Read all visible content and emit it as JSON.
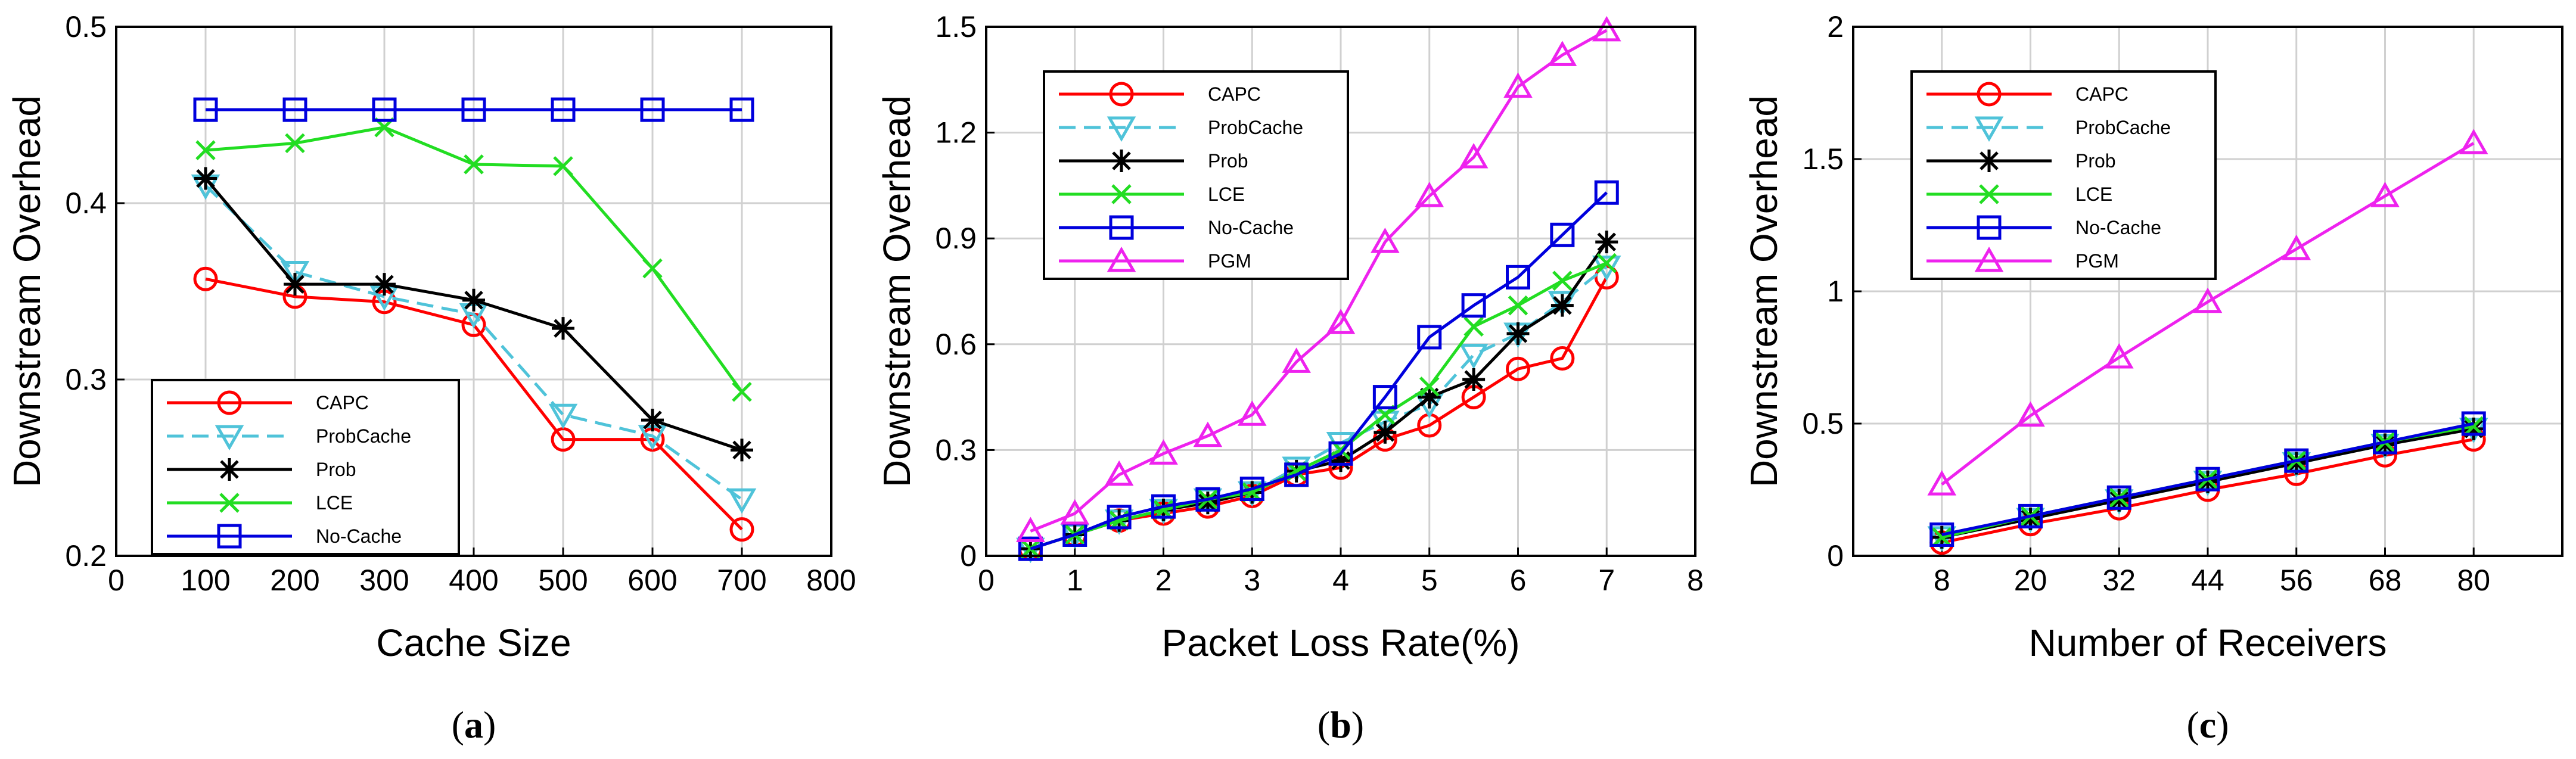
{
  "chart_data": [
    {
      "type": "line",
      "caption": "a",
      "xlabel": "Cache Size",
      "ylabel": "Downstream  Overhead",
      "xlim": [
        0,
        800
      ],
      "ylim": [
        0.2,
        0.5
      ],
      "xticks": [
        "0",
        "100",
        "200",
        "300",
        "400",
        "500",
        "600",
        "700",
        "800"
      ],
      "yticks": [
        "0.2",
        "0.3",
        "0.4",
        "0.5"
      ],
      "grid": true,
      "legend_position": "bottom-left",
      "x": [
        100,
        200,
        300,
        400,
        500,
        600,
        700
      ],
      "series": [
        {
          "name": "CAPC",
          "color": "#ff0000",
          "marker": "circle",
          "dash": "solid",
          "values": [
            0.357,
            0.347,
            0.344,
            0.331,
            0.266,
            0.266,
            0.215
          ]
        },
        {
          "name": "ProbCache",
          "color": "#4fc3d9",
          "marker": "triangle-down",
          "dash": "dashed",
          "values": [
            0.41,
            0.361,
            0.347,
            0.337,
            0.28,
            0.268,
            0.232
          ]
        },
        {
          "name": "Prob",
          "color": "#000000",
          "marker": "asterisk",
          "dash": "solid",
          "values": [
            0.414,
            0.354,
            0.354,
            0.345,
            0.329,
            0.277,
            0.26
          ]
        },
        {
          "name": "LCE",
          "color": "#22dd22",
          "marker": "x",
          "dash": "solid",
          "values": [
            0.43,
            0.434,
            0.443,
            0.422,
            0.421,
            0.363,
            0.293
          ]
        },
        {
          "name": "No-Cache",
          "color": "#0000dd",
          "marker": "square",
          "dash": "solid",
          "values": [
            0.453,
            0.453,
            0.453,
            0.453,
            0.453,
            0.453,
            0.453
          ]
        }
      ]
    },
    {
      "type": "line",
      "caption": "b",
      "xlabel": "Packet Loss Rate(%)",
      "ylabel": "Downstream  Overhead",
      "xlim": [
        0,
        8
      ],
      "ylim": [
        0,
        1.5
      ],
      "xticks": [
        "0",
        "1",
        "2",
        "3",
        "4",
        "5",
        "6",
        "7",
        "8"
      ],
      "yticks": [
        "0",
        "0.3",
        "0.6",
        "0.9",
        "1.2",
        "1.5"
      ],
      "grid": true,
      "legend_position": "top-left",
      "x": [
        0.5,
        1,
        1.5,
        2,
        2.5,
        3,
        3.5,
        4,
        4.5,
        5,
        5.5,
        6,
        6.5,
        7
      ],
      "series": [
        {
          "name": "CAPC",
          "color": "#ff0000",
          "marker": "circle",
          "dash": "solid",
          "values": [
            0.02,
            0.06,
            0.1,
            0.12,
            0.14,
            0.17,
            0.23,
            0.25,
            0.33,
            0.37,
            0.45,
            0.53,
            0.56,
            0.79
          ]
        },
        {
          "name": "ProbCache",
          "color": "#4fc3d9",
          "marker": "triangle-down",
          "dash": "dashed",
          "values": [
            0.02,
            0.06,
            0.1,
            0.13,
            0.16,
            0.18,
            0.25,
            0.32,
            0.38,
            0.43,
            0.57,
            0.63,
            0.72,
            0.82
          ]
        },
        {
          "name": "Prob",
          "color": "#000000",
          "marker": "asterisk",
          "dash": "solid",
          "values": [
            0.02,
            0.06,
            0.1,
            0.13,
            0.15,
            0.18,
            0.24,
            0.27,
            0.35,
            0.45,
            0.5,
            0.63,
            0.71,
            0.89
          ]
        },
        {
          "name": "LCE",
          "color": "#22dd22",
          "marker": "x",
          "dash": "solid",
          "values": [
            0.02,
            0.06,
            0.1,
            0.13,
            0.16,
            0.18,
            0.24,
            0.3,
            0.4,
            0.48,
            0.65,
            0.71,
            0.78,
            0.83
          ]
        },
        {
          "name": "No-Cache",
          "color": "#0000dd",
          "marker": "square",
          "dash": "solid",
          "values": [
            0.02,
            0.06,
            0.11,
            0.14,
            0.16,
            0.19,
            0.23,
            0.29,
            0.45,
            0.62,
            0.71,
            0.79,
            0.91,
            1.03
          ]
        },
        {
          "name": "PGM",
          "color": "#ee22ee",
          "marker": "triangle-up",
          "dash": "solid",
          "values": [
            0.07,
            0.12,
            0.23,
            0.29,
            0.34,
            0.4,
            0.55,
            0.66,
            0.89,
            1.02,
            1.13,
            1.33,
            1.42,
            1.49
          ]
        }
      ]
    },
    {
      "type": "line",
      "caption": "c",
      "xlabel": "Number of Receivers",
      "ylabel": "Downstream  Overhead",
      "xlim": [
        -4,
        92
      ],
      "ylim": [
        0,
        2
      ],
      "xticks": [
        "8",
        "20",
        "32",
        "44",
        "56",
        "68",
        "80"
      ],
      "yticks": [
        "0",
        "0.5",
        "1",
        "1.5",
        "2"
      ],
      "grid": true,
      "legend_position": "top-left",
      "x": [
        8,
        20,
        32,
        44,
        56,
        68,
        80
      ],
      "series": [
        {
          "name": "CAPC",
          "color": "#ff0000",
          "marker": "circle",
          "dash": "solid",
          "values": [
            0.05,
            0.12,
            0.18,
            0.25,
            0.31,
            0.38,
            0.44
          ]
        },
        {
          "name": "ProbCache",
          "color": "#4fc3d9",
          "marker": "triangle-down",
          "dash": "dashed",
          "values": [
            0.07,
            0.14,
            0.21,
            0.28,
            0.35,
            0.42,
            0.48
          ]
        },
        {
          "name": "Prob",
          "color": "#000000",
          "marker": "asterisk",
          "dash": "solid",
          "values": [
            0.07,
            0.14,
            0.21,
            0.28,
            0.35,
            0.42,
            0.48
          ]
        },
        {
          "name": "LCE",
          "color": "#22dd22",
          "marker": "x",
          "dash": "solid",
          "values": [
            0.07,
            0.15,
            0.22,
            0.29,
            0.36,
            0.43,
            0.49
          ]
        },
        {
          "name": "No-Cache",
          "color": "#0000dd",
          "marker": "square",
          "dash": "solid",
          "values": [
            0.08,
            0.15,
            0.22,
            0.29,
            0.36,
            0.43,
            0.5
          ]
        },
        {
          "name": "PGM",
          "color": "#ee22ee",
          "marker": "triangle-up",
          "dash": "solid",
          "values": [
            0.27,
            0.53,
            0.75,
            0.96,
            1.16,
            1.36,
            1.56
          ]
        }
      ]
    }
  ]
}
